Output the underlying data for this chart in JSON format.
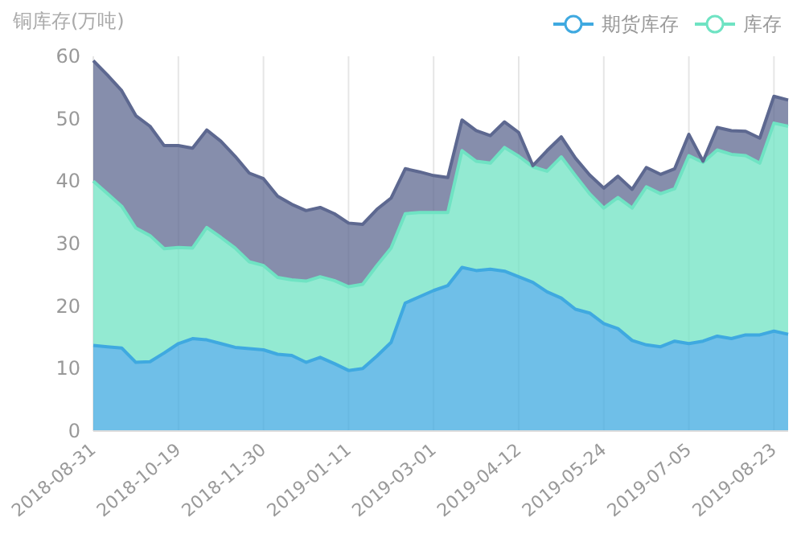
{
  "chart_data": {
    "type": "area",
    "stacked": true,
    "ylabel": "铜库存(万吨)",
    "legend": "top right",
    "grid": "x",
    "marker": "none",
    "ylim": [
      0,
      60
    ],
    "yticks": [
      0,
      10,
      20,
      30,
      40,
      50,
      60
    ],
    "categories": [
      "2018-08-31",
      null,
      null,
      null,
      null,
      null,
      "2018-10-19",
      null,
      null,
      null,
      null,
      null,
      "2018-11-30",
      null,
      null,
      null,
      null,
      null,
      "2019-01-11",
      null,
      null,
      null,
      null,
      null,
      "2019-03-01",
      null,
      null,
      null,
      null,
      null,
      "2019-04-12",
      null,
      null,
      null,
      null,
      null,
      "2019-05-24",
      null,
      null,
      null,
      null,
      null,
      "2019-07-05",
      null,
      null,
      null,
      null,
      null,
      "2019-08-23",
      null
    ],
    "series": [
      {
        "name": "期货库存",
        "color": "#3fa9e0",
        "values": [
          13.7,
          13.5,
          13.3,
          11,
          11.1,
          12.5,
          14,
          14.8,
          14.6,
          14,
          13.4,
          13.2,
          13,
          12.3,
          12.1,
          11,
          11.8,
          10.8,
          9.7,
          10,
          12,
          14.2,
          20.5,
          21.5,
          22.5,
          23.3,
          26.2,
          25.7,
          25.9,
          25.6,
          24.7,
          23.8,
          22.3,
          21.3,
          19.5,
          18.9,
          17.2,
          16.4,
          14.5,
          13.8,
          13.5,
          14.4,
          14,
          14.4,
          15.2,
          14.8,
          15.4,
          15.4,
          16,
          15.5
        ]
      },
      {
        "name": "库存",
        "color": "#6fe3c3",
        "values": [
          26.3,
          24.5,
          22.7,
          21.5,
          20.2,
          16.7,
          15.4,
          14.5,
          18,
          17,
          15.9,
          13.9,
          13.5,
          12.3,
          12.1,
          13,
          12.9,
          13.3,
          13.4,
          13.5,
          14.5,
          15.1,
          14.3,
          13.5,
          12.5,
          11.7,
          18.7,
          17.5,
          17,
          19.8,
          19.3,
          18.5,
          19.3,
          22.6,
          21.4,
          19.1,
          18.5,
          21,
          21.2,
          25.3,
          24.5,
          24.4,
          30.1,
          28.6,
          29.8,
          29.5,
          28.7,
          27.5,
          33.3,
          33.3
        ]
      },
      {
        "color": "#5d6890",
        "values": [
          19.3,
          19,
          18.5,
          18,
          17.5,
          16.5,
          16.3,
          16,
          15.6,
          15.4,
          14.7,
          14.2,
          13.9,
          13,
          12.1,
          11.3,
          11.1,
          10.7,
          10.2,
          9.6,
          9,
          8,
          7.2,
          6.5,
          5.9,
          5.6,
          4.9,
          4.9,
          4.4,
          4.1,
          3.8,
          0.2,
          3.3,
          3.2,
          2.8,
          3,
          3.2,
          3.4,
          3,
          3.1,
          3.1,
          3.2,
          3.4,
          0.2,
          3.6,
          3.8,
          3.9,
          4,
          4.3,
          4.2
        ]
      }
    ]
  }
}
